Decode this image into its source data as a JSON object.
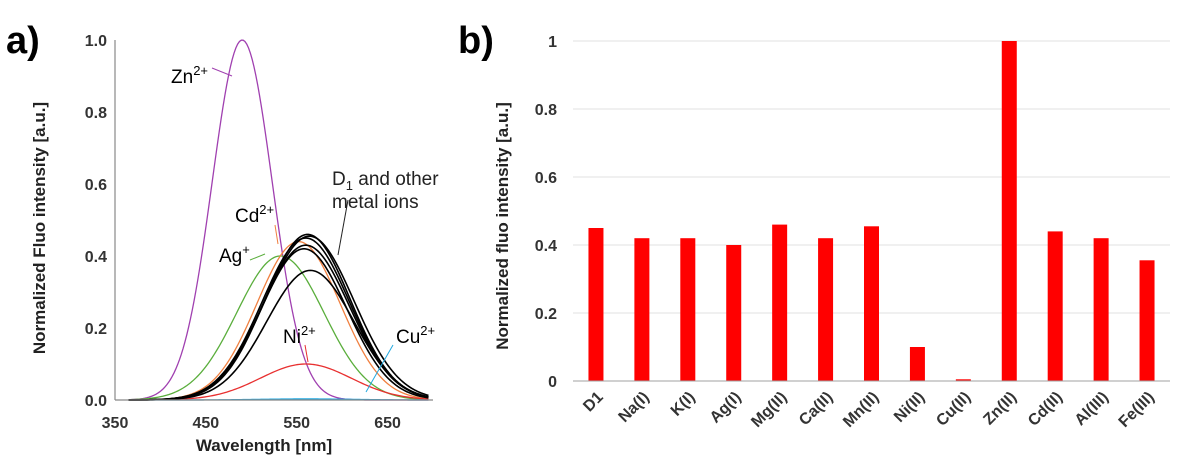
{
  "panel_a": {
    "label": "a)",
    "chart_data": {
      "type": "line",
      "xlabel": "Wavelength [nm]",
      "ylabel": "Normalized Fluo intensity [a.u.]",
      "xlim": [
        350,
        700
      ],
      "ylim": [
        0,
        1.0
      ],
      "x_ticks": [
        "350",
        "450",
        "550",
        "650"
      ],
      "y_ticks": [
        "0.0",
        "0.2",
        "0.4",
        "0.6",
        "0.8",
        "1.0"
      ],
      "grid": false,
      "series": [
        {
          "name": "Zn2+",
          "color": "#a040b0",
          "peak_x": 490,
          "peak_y": 1.0,
          "sigma": 33
        },
        {
          "name": "Ag+",
          "color": "#5aae3c",
          "peak_x": 532,
          "peak_y": 0.4,
          "sigma": 48
        },
        {
          "name": "Cd2+",
          "color": "#f08040",
          "peak_x": 552,
          "peak_y": 0.44,
          "sigma": 46
        },
        {
          "name": "Ni2+",
          "color": "#e83030",
          "peak_x": 560,
          "peak_y": 0.1,
          "sigma": 50
        },
        {
          "name": "Cu2+",
          "color": "#20a8e0",
          "peak_x": 560,
          "peak_y": 0.003,
          "sigma": 50
        },
        {
          "name": "D1 and other metal ions",
          "color": "#000000",
          "peak_x": 560,
          "peak_y": 0.45,
          "sigma": 48
        },
        {
          "name": "D1 and other metal ions",
          "color": "#000000",
          "peak_x": 562,
          "peak_y": 0.46,
          "sigma": 47
        },
        {
          "name": "D1 and other metal ions",
          "color": "#000000",
          "peak_x": 558,
          "peak_y": 0.42,
          "sigma": 47
        },
        {
          "name": "D1 and other metal ions",
          "color": "#000000",
          "peak_x": 564,
          "peak_y": 0.455,
          "sigma": 49
        },
        {
          "name": "D1 and other metal ions",
          "color": "#000000",
          "peak_x": 560,
          "peak_y": 0.43,
          "sigma": 48
        },
        {
          "name": "D1 and other metal ions",
          "color": "#000000",
          "peak_x": 565,
          "peak_y": 0.36,
          "sigma": 48
        }
      ],
      "annotations": [
        {
          "base": "Zn",
          "sup": "2+",
          "color": "#a040b0"
        },
        {
          "base": "Cd",
          "sup": "2+",
          "color": "#f08040"
        },
        {
          "base": "Ag",
          "sup": "+",
          "color": "#5aae3c"
        },
        {
          "base": "Ni",
          "sup": "2+",
          "color": "#e83030"
        },
        {
          "base": "Cu",
          "sup": "2+",
          "color": "#20a8e0"
        }
      ],
      "d1_label": {
        "line1_base": "D",
        "line1_sub": "1",
        "line1_rest": " and other",
        "line2": "metal ions",
        "color": "#222222"
      }
    }
  },
  "panel_b": {
    "label": "b)",
    "chart_data": {
      "type": "bar",
      "ylabel": "Normalized fluo intensity [a.u.]",
      "ylim": [
        0,
        1
      ],
      "y_ticks": [
        "0",
        "0.2",
        "0.4",
        "0.6",
        "0.8",
        "1"
      ],
      "grid": true,
      "bar_color": "#ff0000",
      "categories": [
        "D1",
        "Na(I)",
        "K(I)",
        "Ag(I)",
        "Mg(II)",
        "Ca(II)",
        "Mn(II)",
        "Ni(II)",
        "Cu(II)",
        "Zn(II)",
        "Cd(II)",
        "Al(III)",
        "Fe(III)"
      ],
      "values": [
        0.45,
        0.42,
        0.42,
        0.4,
        0.46,
        0.42,
        0.455,
        0.1,
        0.005,
        1.0,
        0.44,
        0.42,
        0.355
      ]
    }
  }
}
